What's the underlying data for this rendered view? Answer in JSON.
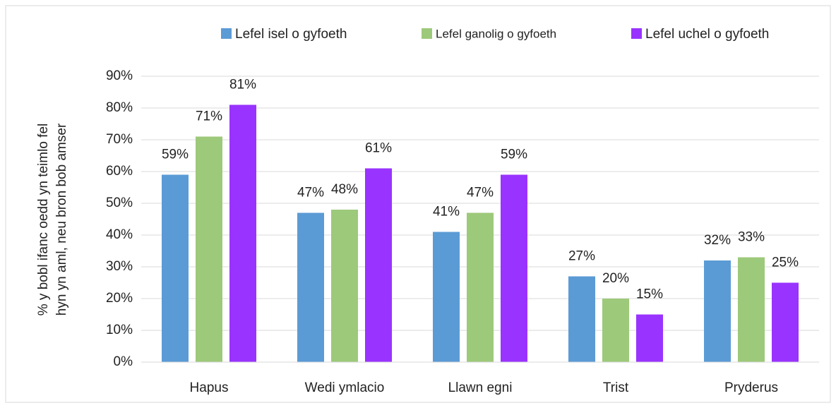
{
  "chart_data": {
    "type": "bar",
    "ylabel": [
      "% y bobl ifanc oedd yn teimlo fel",
      "hyn yn aml, neu bron bob amser"
    ],
    "categories": [
      "Hapus",
      "Wedi ymlacio",
      "Llawn egni",
      "Trist",
      "Pryderus"
    ],
    "series": [
      {
        "name": "Lefel isel o gyfoeth",
        "color": "#5b9bd5",
        "values": [
          59,
          47,
          41,
          27,
          32
        ],
        "value_labels": [
          "59%",
          "47%",
          "41%",
          "27%",
          "32%"
        ]
      },
      {
        "name": "Lefel ganolig o gyfoeth",
        "color": "#9dc97a",
        "values": [
          71,
          48,
          47,
          20,
          33
        ],
        "value_labels": [
          "71%",
          "48%",
          "47%",
          "20%",
          "33%"
        ]
      },
      {
        "name": "Lefel uchel o gyfoeth",
        "color": "#9933ff",
        "values": [
          81,
          61,
          59,
          15,
          25
        ],
        "value_labels": [
          "81%",
          "61%",
          "59%",
          "15%",
          "25%"
        ]
      }
    ],
    "ylim": [
      0,
      90
    ],
    "yticks": [
      {
        "value": 0,
        "label": "0%"
      },
      {
        "value": 10,
        "label": "10%"
      },
      {
        "value": 20,
        "label": "20%"
      },
      {
        "value": 30,
        "label": "30%"
      },
      {
        "value": 40,
        "label": "40%"
      },
      {
        "value": 50,
        "label": "50%"
      },
      {
        "value": 60,
        "label": "60%"
      },
      {
        "value": 70,
        "label": "70%"
      },
      {
        "value": 80,
        "label": "80%"
      },
      {
        "value": 90,
        "label": "90%"
      }
    ],
    "grid": true,
    "legend": "top"
  }
}
